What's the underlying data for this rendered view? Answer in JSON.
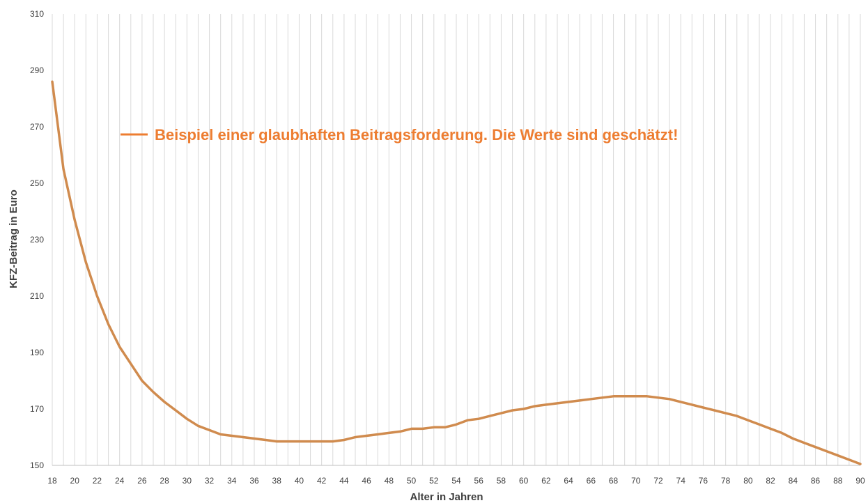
{
  "chart_data": {
    "type": "line",
    "xlabel": "Alter in Jahren",
    "ylabel": "KFZ-Beitrag in Euro",
    "xlim": [
      18,
      90
    ],
    "ylim": [
      150,
      310
    ],
    "x_ticks": [
      "18",
      "20",
      "22",
      "24",
      "26",
      "28",
      "30",
      "32",
      "34",
      "36",
      "38",
      "40",
      "42",
      "44",
      "46",
      "48",
      "50",
      "52",
      "54",
      "56",
      "58",
      "60",
      "62",
      "64",
      "66",
      "68",
      "70",
      "72",
      "74",
      "76",
      "78",
      "80",
      "82",
      "84",
      "86",
      "88",
      "90"
    ],
    "y_ticks": [
      "150",
      "170",
      "190",
      "210",
      "230",
      "250",
      "270",
      "290",
      "310"
    ],
    "grid": "vertical",
    "legend_position": "top-left",
    "series": [
      {
        "name": "Beispiel einer glaubhaften Beitragsforderung. Die Werte sind geschätzt!",
        "color": "#d08b4e",
        "legend_color": "#ed7d31",
        "x": [
          18,
          19,
          20,
          21,
          22,
          23,
          24,
          25,
          26,
          27,
          28,
          29,
          30,
          31,
          32,
          33,
          34,
          35,
          36,
          37,
          38,
          39,
          40,
          41,
          42,
          43,
          44,
          45,
          46,
          47,
          48,
          49,
          50,
          51,
          52,
          53,
          54,
          55,
          56,
          57,
          58,
          59,
          60,
          61,
          62,
          63,
          64,
          65,
          66,
          67,
          68,
          69,
          70,
          71,
          72,
          73,
          74,
          75,
          76,
          77,
          78,
          79,
          80,
          81,
          82,
          83,
          84,
          85,
          86,
          87,
          88,
          89,
          90
        ],
        "values": [
          286,
          255,
          237,
          222,
          210,
          200,
          192,
          186,
          180,
          176,
          172.5,
          169.5,
          166.5,
          164,
          162.5,
          161,
          160.5,
          160,
          159.5,
          159,
          158.5,
          158.5,
          158.5,
          158.5,
          158.5,
          158.5,
          159,
          160,
          160.5,
          161,
          161.5,
          162,
          163,
          163,
          163.5,
          163.5,
          164.5,
          166,
          166.5,
          167.5,
          168.5,
          169.5,
          170,
          171,
          171.5,
          172,
          172.5,
          173,
          173.5,
          174,
          174.5,
          174.5,
          174.5,
          174.5,
          174,
          173.5,
          172.5,
          171.5,
          170.5,
          169.5,
          168.5,
          167.5,
          166,
          164.5,
          163,
          161.5,
          159.5,
          158,
          156.5,
          155,
          153.5,
          152,
          150.5
        ]
      }
    ]
  }
}
